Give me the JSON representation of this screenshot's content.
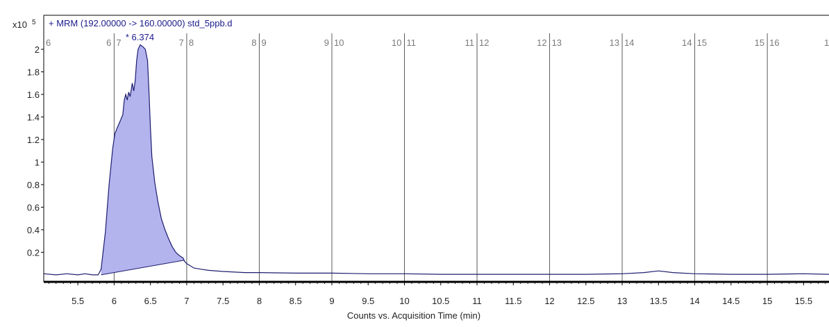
{
  "colors": {
    "trace": "#1c1c6e",
    "fill": "#b3b3ee",
    "title": "#1a1a8c",
    "axis": "#000000",
    "window_line": "#5a5a5a",
    "window_label": "#7a7a7a",
    "peak_label": "#1a1a8c",
    "tick_text": "#222222"
  },
  "chart_data": {
    "type": "line",
    "title": "+ MRM (192.00000 -> 160.00000) std_5ppb.d",
    "xlabel": "Counts vs. Acquisition Time (min)",
    "ylabel": "",
    "y_multiplier_label": "x10",
    "y_multiplier_exp": "5",
    "xlim": [
      5.03,
      15.85
    ],
    "ylim": [
      -0.05,
      2.16
    ],
    "x_ticks": [
      "5.5",
      "6",
      "6.5",
      "7",
      "7.5",
      "8",
      "8.5",
      "9",
      "9.5",
      "10",
      "10.5",
      "11",
      "11.5",
      "12",
      "12.5",
      "13",
      "13.5",
      "14",
      "14.5",
      "15",
      "15.5"
    ],
    "x_tick_values": [
      5.5,
      6,
      6.5,
      7,
      7.5,
      8,
      8.5,
      9,
      9.5,
      10,
      10.5,
      11,
      11.5,
      12,
      12.5,
      13,
      13.5,
      14,
      14.5,
      15,
      15.5
    ],
    "y_ticks": [
      "0.2",
      "0.4",
      "0.6",
      "0.8",
      "1",
      "1.2",
      "1.4",
      "1.6",
      "1.8",
      "2"
    ],
    "y_tick_values": [
      0.2,
      0.4,
      0.6,
      0.8,
      1.0,
      1.2,
      1.4,
      1.6,
      1.8,
      2.0
    ],
    "time_windows": [
      {
        "x": 6.0,
        "left_label": "6",
        "right_label": "7"
      },
      {
        "x": 7.0,
        "left_label": "7",
        "right_label": "8"
      },
      {
        "x": 8.0,
        "left_label": "8",
        "right_label": "9"
      },
      {
        "x": 9.0,
        "left_label": "9",
        "right_label": "10"
      },
      {
        "x": 10.0,
        "left_label": "10",
        "right_label": "11"
      },
      {
        "x": 11.0,
        "left_label": "11",
        "right_label": "12"
      },
      {
        "x": 12.0,
        "left_label": "12",
        "right_label": "13"
      },
      {
        "x": 13.0,
        "left_label": "13",
        "right_label": "14"
      },
      {
        "x": 14.0,
        "left_label": "14",
        "right_label": "15"
      },
      {
        "x": 15.0,
        "left_label": "15",
        "right_label": "16"
      }
    ],
    "edge_labels": {
      "left": "6",
      "right": "1"
    },
    "peak": {
      "x": 6.374,
      "y": 2.03,
      "label": "* 6.374"
    },
    "integration_baseline": [
      [
        5.82,
        0.0
      ],
      [
        6.97,
        0.13
      ]
    ],
    "series": [
      {
        "x": [
          5.03,
          5.2,
          5.35,
          5.5,
          5.6,
          5.7,
          5.78,
          5.82,
          5.88,
          5.93,
          5.98,
          6.01,
          6.04,
          6.08,
          6.12,
          6.14,
          6.16,
          6.18,
          6.2,
          6.22,
          6.25,
          6.27,
          6.29,
          6.31,
          6.33,
          6.36,
          6.38,
          6.4,
          6.43,
          6.46,
          6.48,
          6.5,
          6.52,
          6.56,
          6.6,
          6.65,
          6.7,
          6.75,
          6.8,
          6.85,
          6.9,
          6.95,
          6.97,
          7.0,
          7.05,
          7.1,
          7.2,
          7.3,
          7.5,
          7.8,
          8.0,
          8.5,
          9.0,
          9.5,
          10.0,
          10.5,
          11.0,
          11.5,
          12.0,
          12.5,
          13.0,
          13.3,
          13.5,
          13.7,
          14.0,
          14.5,
          15.0,
          15.5,
          15.85
        ],
        "y": [
          0.01,
          0.0,
          0.01,
          0.0,
          0.01,
          0.0,
          0.0,
          0.05,
          0.38,
          0.8,
          1.12,
          1.25,
          1.3,
          1.36,
          1.42,
          1.55,
          1.6,
          1.55,
          1.62,
          1.58,
          1.7,
          1.63,
          1.72,
          1.9,
          2.0,
          2.04,
          2.03,
          2.02,
          2.0,
          1.9,
          1.62,
          1.3,
          1.05,
          0.82,
          0.66,
          0.5,
          0.4,
          0.32,
          0.25,
          0.2,
          0.17,
          0.15,
          0.12,
          0.1,
          0.08,
          0.06,
          0.05,
          0.04,
          0.03,
          0.02,
          0.02,
          0.015,
          0.015,
          0.01,
          0.01,
          0.005,
          0.005,
          0.005,
          0.005,
          0.005,
          0.01,
          0.02,
          0.035,
          0.02,
          0.01,
          0.005,
          0.005,
          0.01,
          0.005
        ]
      }
    ],
    "grid": false,
    "legend": "none"
  }
}
